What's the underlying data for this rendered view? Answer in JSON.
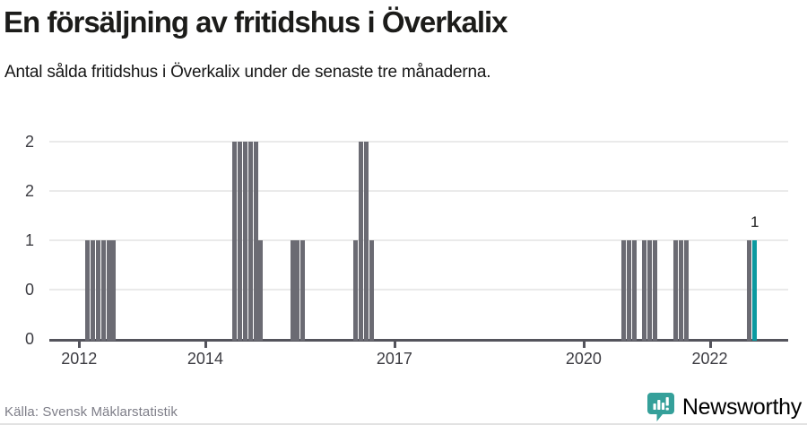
{
  "header": {
    "title": "En försäljning av fritidshus i Överkalix",
    "subtitle": "Antal sålda fritidshus i Överkalix under de senaste tre månaderna."
  },
  "footer": {
    "source": "Källa: Svensk Mäklarstatistik",
    "brand_name": "Newsworthy"
  },
  "colors": {
    "bar": "#6b6b73",
    "bar_highlight": "#0b9aa0",
    "grid": "#eaeaea",
    "axis": "#54545c",
    "tick_label": "#3c3c42",
    "source_text": "#7e7e88",
    "brand": "#35a09a"
  },
  "chart_data": {
    "type": "bar",
    "title": "En försäljning av fritidshus i Överkalix",
    "xlabel": "",
    "ylabel": "",
    "ylim": [
      0,
      2
    ],
    "grid": true,
    "legend": "none",
    "y_ticks": [
      {
        "value": 2,
        "label": "2"
      },
      {
        "value": 1.5,
        "label": "2"
      },
      {
        "value": 1,
        "label": "1"
      },
      {
        "value": 0.5,
        "label": "0"
      },
      {
        "value": 0,
        "label": "0"
      }
    ],
    "x_ticks": [
      {
        "year": 2012,
        "label": "2012"
      },
      {
        "year": 2014,
        "label": "2014"
      },
      {
        "year": 2017,
        "label": "2017"
      },
      {
        "year": 2020,
        "label": "2020"
      },
      {
        "year": 2022,
        "label": "2022"
      }
    ],
    "bars": [
      {
        "month": "2012-02",
        "value": 1
      },
      {
        "month": "2012-03",
        "value": 1
      },
      {
        "month": "2012-04",
        "value": 1
      },
      {
        "month": "2012-05",
        "value": 1
      },
      {
        "month": "2012-06",
        "value": 1
      },
      {
        "month": "2012-07",
        "value": 1
      },
      {
        "month": "2014-06",
        "value": 2
      },
      {
        "month": "2014-07",
        "value": 2
      },
      {
        "month": "2014-08",
        "value": 2
      },
      {
        "month": "2014-09",
        "value": 2
      },
      {
        "month": "2014-10",
        "value": 2
      },
      {
        "month": "2014-11",
        "value": 1
      },
      {
        "month": "2015-05",
        "value": 1
      },
      {
        "month": "2015-06",
        "value": 1
      },
      {
        "month": "2015-07",
        "value": 1
      },
      {
        "month": "2016-05",
        "value": 1
      },
      {
        "month": "2016-06",
        "value": 2
      },
      {
        "month": "2016-07",
        "value": 2
      },
      {
        "month": "2016-08",
        "value": 1
      },
      {
        "month": "2020-08",
        "value": 1
      },
      {
        "month": "2020-09",
        "value": 1
      },
      {
        "month": "2020-10",
        "value": 1
      },
      {
        "month": "2020-12",
        "value": 1
      },
      {
        "month": "2021-01",
        "value": 1
      },
      {
        "month": "2021-02",
        "value": 1
      },
      {
        "month": "2021-06",
        "value": 1
      },
      {
        "month": "2021-07",
        "value": 1
      },
      {
        "month": "2021-08",
        "value": 1
      },
      {
        "month": "2022-08",
        "value": 1
      },
      {
        "month": "2022-09",
        "value": 1,
        "highlight": true,
        "data_label": "1"
      }
    ]
  }
}
